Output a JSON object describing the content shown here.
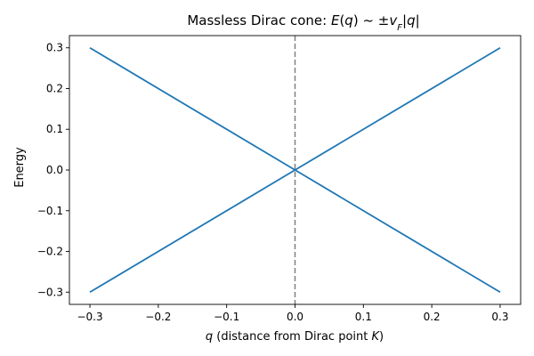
{
  "chart_data": {
    "type": "line",
    "title": {
      "prefix": "Massless Dirac cone: ",
      "E": "E",
      "open": "(",
      "q": "q",
      "close": ")",
      "tilde": " ~ ",
      "pm": "±",
      "v": "v",
      "sub": "F",
      "bar1": "|",
      "q2": "q",
      "bar2": "|"
    },
    "xlabel": {
      "var": "q",
      "text": " (distance from Dirac point ",
      "K": "K",
      "close": ")"
    },
    "ylabel": "Energy",
    "xlim": [
      -0.33,
      0.33
    ],
    "ylim": [
      -0.33,
      0.33
    ],
    "xticks": [
      -0.3,
      -0.2,
      -0.1,
      0.0,
      0.1,
      0.2,
      0.3
    ],
    "yticks": [
      -0.3,
      -0.2,
      -0.1,
      0.0,
      0.1,
      0.2,
      0.3
    ],
    "xtick_labels": [
      "−0.3",
      "−0.2",
      "−0.1",
      "0.0",
      "0.1",
      "0.2",
      "0.3"
    ],
    "ytick_labels": [
      "−0.3",
      "−0.2",
      "−0.1",
      "0.0",
      "0.1",
      "0.2",
      "0.3"
    ],
    "series": [
      {
        "x": [
          -0.3,
          0.0,
          0.3
        ],
        "y": [
          0.3,
          0.0,
          0.3
        ]
      },
      {
        "x": [
          -0.3,
          0.0,
          0.3
        ],
        "y": [
          -0.3,
          0.0,
          -0.3
        ]
      }
    ],
    "vline": {
      "x": 0.0,
      "style": "dashed"
    },
    "colors": {
      "series": "#1f77b4",
      "vline": "#808080"
    },
    "grid": false,
    "legend": "none"
  }
}
